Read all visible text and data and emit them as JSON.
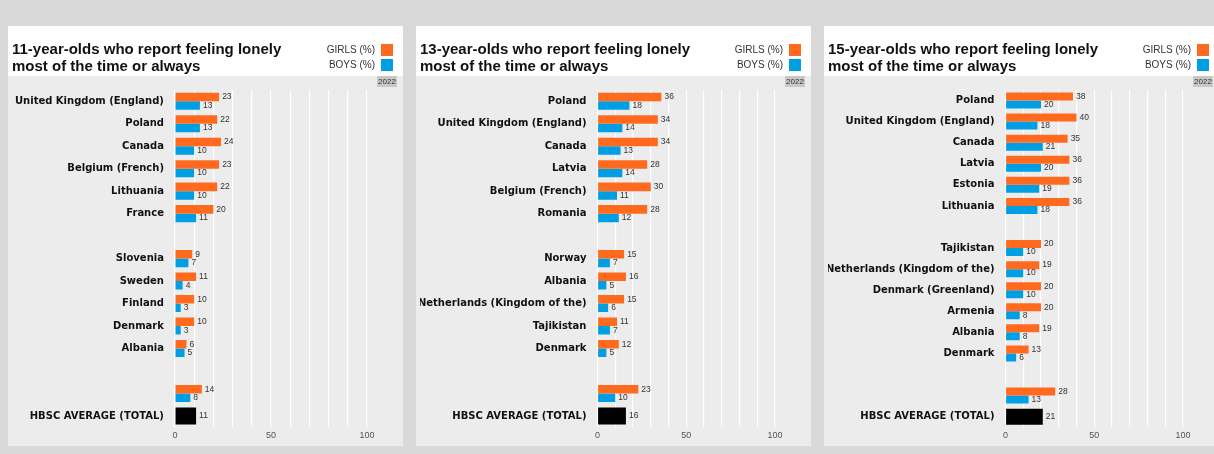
{
  "chart_data": [
    {
      "type": "bar",
      "orientation": "horizontal",
      "title": "11-year-olds who report feeling lonely most of the time or always",
      "categories": [
        "United Kingdom (England)",
        "Poland",
        "Canada",
        "Belgium (French)",
        "Lithuania",
        "France",
        null,
        "Slovenia",
        "Sweden",
        "Finland",
        "Denmark",
        "Albania",
        null,
        null,
        "HBSC AVERAGE (TOTAL)"
      ],
      "series": [
        {
          "name": "GIRLS (%)",
          "color": "#ff6a1f",
          "values": [
            23,
            22,
            24,
            23,
            22,
            20,
            null,
            9,
            11,
            10,
            10,
            6,
            null,
            14,
            null
          ]
        },
        {
          "name": "BOYS (%)",
          "color": "#009fe3",
          "values": [
            13,
            13,
            10,
            10,
            10,
            11,
            null,
            7,
            4,
            3,
            3,
            5,
            null,
            8,
            null
          ]
        },
        {
          "color": "#000000",
          "values": [
            null,
            null,
            null,
            null,
            null,
            null,
            null,
            null,
            null,
            null,
            null,
            null,
            null,
            null,
            11
          ]
        }
      ],
      "xlim": [
        0,
        100
      ],
      "xticks": [
        0,
        {
          "value": 10,
          "label": null
        },
        {
          "value": 20,
          "label": null
        },
        {
          "value": 30,
          "label": null
        },
        {
          "value": 40,
          "label": null
        },
        50,
        {
          "value": 60,
          "label": null
        },
        {
          "value": 70,
          "label": null
        },
        {
          "value": 80,
          "label": null
        },
        {
          "value": 90,
          "label": null
        },
        100
      ],
      "grid": "x",
      "legend": "top right",
      "data_labels": true,
      "annotations": [
        "2022"
      ]
    },
    {
      "type": "bar",
      "orientation": "horizontal",
      "title": "13-year-olds who report feeling lonely most of the time or always",
      "categories": [
        "Poland",
        "United Kingdom (England)",
        "Canada",
        "Latvia",
        "Belgium (French)",
        "Romania",
        null,
        "Norway",
        "Albania",
        "Netherlands (Kingdom of the)",
        "Tajikistan",
        "Denmark",
        null,
        null,
        "HBSC AVERAGE (TOTAL)"
      ],
      "series": [
        {
          "name": "GIRLS (%)",
          "color": "#ff6a1f",
          "values": [
            36,
            34,
            34,
            28,
            30,
            28,
            null,
            15,
            16,
            15,
            11,
            12,
            null,
            23,
            null
          ]
        },
        {
          "name": "BOYS (%)",
          "color": "#009fe3",
          "values": [
            18,
            14,
            13,
            14,
            11,
            12,
            null,
            7,
            5,
            6,
            7,
            5,
            null,
            10,
            null
          ]
        },
        {
          "color": "#000000",
          "values": [
            null,
            null,
            null,
            null,
            null,
            null,
            null,
            null,
            null,
            null,
            null,
            null,
            null,
            null,
            16
          ]
        }
      ],
      "xlim": [
        0,
        100
      ],
      "xticks": [
        0,
        {
          "value": 10,
          "label": null
        },
        {
          "value": 20,
          "label": null
        },
        {
          "value": 30,
          "label": null
        },
        {
          "value": 40,
          "label": null
        },
        50,
        {
          "value": 60,
          "label": null
        },
        {
          "value": 70,
          "label": null
        },
        {
          "value": 80,
          "label": null
        },
        {
          "value": 90,
          "label": null
        },
        100
      ],
      "grid": "x",
      "legend": "top right",
      "data_labels": true,
      "annotations": [
        "2022"
      ]
    },
    {
      "type": "bar",
      "orientation": "horizontal",
      "title": "15-year-olds who report feeling lonely most of the time or always",
      "categories": [
        "Poland",
        "United Kingdom (England)",
        "Canada",
        "Latvia",
        "Estonia",
        "Lithuania",
        null,
        "Tajikistan",
        "Netherlands (Kingdom of the)",
        "Denmark (Greenland)",
        "Armenia",
        "Albania",
        "Denmark",
        null,
        null,
        "HBSC AVERAGE (TOTAL)"
      ],
      "series": [
        {
          "name": "GIRLS (%)",
          "color": "#ff6a1f",
          "values": [
            38,
            40,
            35,
            36,
            36,
            36,
            null,
            20,
            19,
            20,
            20,
            19,
            13,
            null,
            28,
            null
          ]
        },
        {
          "name": "BOYS (%)",
          "color": "#009fe3",
          "values": [
            20,
            18,
            21,
            20,
            19,
            18,
            null,
            10,
            10,
            10,
            8,
            8,
            6,
            null,
            13,
            null
          ]
        },
        {
          "color": "#000000",
          "values": [
            null,
            null,
            null,
            null,
            null,
            null,
            null,
            null,
            null,
            null,
            null,
            null,
            null,
            null,
            null,
            21
          ]
        }
      ],
      "xlim": [
        0,
        100
      ],
      "xticks": [
        0,
        {
          "value": 10,
          "label": null
        },
        {
          "value": 20,
          "label": null
        },
        {
          "value": 30,
          "label": null
        },
        {
          "value": 40,
          "label": null
        },
        50,
        {
          "value": 60,
          "label": null
        },
        {
          "value": 70,
          "label": null
        },
        {
          "value": 80,
          "label": null
        },
        {
          "value": 90,
          "label": null
        },
        100
      ],
      "grid": "x",
      "legend": "top right",
      "data_labels": true,
      "annotations": [
        "2022"
      ]
    }
  ]
}
